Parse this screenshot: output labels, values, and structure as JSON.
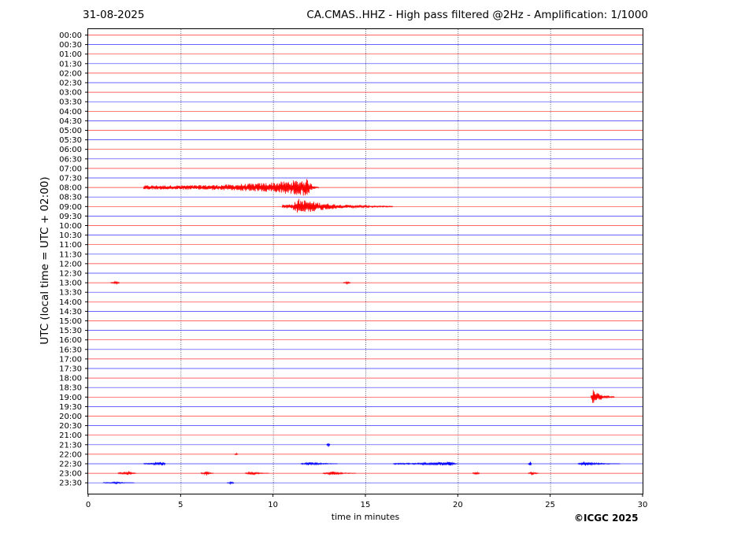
{
  "header": {
    "date": "31-08-2025",
    "title": "CA.CMAS..HHZ - High pass filtered @2Hz - Amplification: 1/1000"
  },
  "footer": {
    "copyright": "©ICGC 2025"
  },
  "chart_data": {
    "type": "line",
    "title": "CA.CMAS..HHZ - High pass filtered @2Hz - Amplification: 1/1000",
    "xlabel": "time in minutes",
    "ylabel": "UTC (local time = UTC + 02:00)",
    "xlim": [
      0,
      30
    ],
    "xticks": [
      "0",
      "5",
      "10",
      "15",
      "20",
      "25",
      "30"
    ],
    "grid_x": true,
    "trace_colors": [
      "#ff0000",
      "#0000ff"
    ],
    "rows": [
      "00:00",
      "00:30",
      "01:00",
      "01:30",
      "02:00",
      "02:30",
      "03:00",
      "03:30",
      "04:00",
      "04:30",
      "05:00",
      "05:30",
      "06:00",
      "06:30",
      "07:00",
      "07:30",
      "08:00",
      "08:30",
      "09:00",
      "09:30",
      "10:00",
      "10:30",
      "11:00",
      "11:30",
      "12:00",
      "12:30",
      "13:00",
      "13:30",
      "14:00",
      "14:30",
      "15:00",
      "15:30",
      "16:00",
      "16:30",
      "17:00",
      "17:30",
      "18:00",
      "18:30",
      "19:00",
      "19:30",
      "20:00",
      "20:30",
      "21:00",
      "21:30",
      "22:00",
      "22:30",
      "23:00",
      "23:30"
    ],
    "events": [
      {
        "row": "08:00",
        "start_min": 3.0,
        "end_min": 12.5,
        "peak_min": 11.9,
        "peak_amp": 11
      },
      {
        "row": "09:00",
        "start_min": 10.5,
        "end_min": 16.5,
        "peak_min": 11.4,
        "peak_amp": 10
      },
      {
        "row": "13:00",
        "start_min": 1.2,
        "end_min": 1.7,
        "peak_min": 1.5,
        "peak_amp": 2
      },
      {
        "row": "13:00",
        "start_min": 13.8,
        "end_min": 14.2,
        "peak_min": 14.0,
        "peak_amp": 2
      },
      {
        "row": "19:00",
        "start_min": 27.2,
        "end_min": 28.5,
        "peak_min": 27.3,
        "peak_amp": 10
      },
      {
        "row": "21:30",
        "start_min": 12.9,
        "end_min": 13.1,
        "peak_min": 13.0,
        "peak_amp": 3
      },
      {
        "row": "22:00",
        "start_min": 7.9,
        "end_min": 8.1,
        "peak_min": 8.0,
        "peak_amp": 1.5
      },
      {
        "row": "22:30",
        "start_min": 3.0,
        "end_min": 4.2,
        "peak_min": 4.0,
        "peak_amp": 3
      },
      {
        "row": "22:30",
        "start_min": 11.5,
        "end_min": 13.5,
        "peak_min": 12.0,
        "peak_amp": 3
      },
      {
        "row": "22:30",
        "start_min": 16.5,
        "end_min": 20.0,
        "peak_min": 19.6,
        "peak_amp": 3
      },
      {
        "row": "22:30",
        "start_min": 23.8,
        "end_min": 24.0,
        "peak_min": 23.9,
        "peak_amp": 3
      },
      {
        "row": "22:30",
        "start_min": 26.5,
        "end_min": 28.8,
        "peak_min": 26.8,
        "peak_amp": 3
      },
      {
        "row": "23:00",
        "start_min": 1.6,
        "end_min": 2.6,
        "peak_min": 2.2,
        "peak_amp": 3
      },
      {
        "row": "23:00",
        "start_min": 6.1,
        "end_min": 6.8,
        "peak_min": 6.4,
        "peak_amp": 3
      },
      {
        "row": "23:00",
        "start_min": 8.5,
        "end_min": 9.8,
        "peak_min": 8.8,
        "peak_amp": 3
      },
      {
        "row": "23:00",
        "start_min": 12.7,
        "end_min": 14.5,
        "peak_min": 13.2,
        "peak_amp": 3
      },
      {
        "row": "23:00",
        "start_min": 20.8,
        "end_min": 21.2,
        "peak_min": 21.0,
        "peak_amp": 2.5
      },
      {
        "row": "23:00",
        "start_min": 23.8,
        "end_min": 24.4,
        "peak_min": 24.0,
        "peak_amp": 2.5
      },
      {
        "row": "23:30",
        "start_min": 0.8,
        "end_min": 2.5,
        "peak_min": 1.5,
        "peak_amp": 1.5
      },
      {
        "row": "23:30",
        "start_min": 7.5,
        "end_min": 7.9,
        "peak_min": 7.7,
        "peak_amp": 1.5
      }
    ]
  }
}
